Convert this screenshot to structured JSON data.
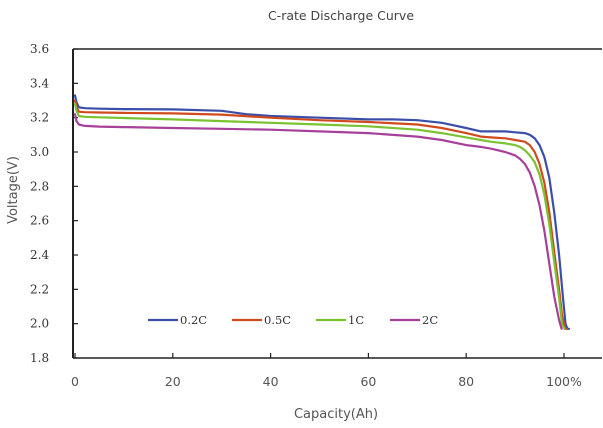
{
  "chart_data": {
    "type": "line",
    "title": "C-rate Discharge Curve",
    "xlabel": "Capacity(Ah)",
    "ylabel": "Voltage(V)",
    "xlim": [
      0,
      105
    ],
    "ylim": [
      1.8,
      3.6
    ],
    "x_ticks": [
      0,
      20,
      40,
      60,
      80,
      100
    ],
    "x_tick_labels": [
      "0",
      "20",
      "40",
      "60",
      "80",
      "100%"
    ],
    "y_ticks": [
      1.8,
      2.0,
      2.2,
      2.4,
      2.6,
      2.8,
      3.0,
      3.2,
      3.4,
      3.6
    ],
    "y_tick_labels": [
      "1.8",
      "2.0",
      "2.2",
      "2.4",
      "2.6",
      "2.8",
      "3.0",
      "3.2",
      "3.4",
      "3.6"
    ],
    "grid": false,
    "legend_position": "bottom-left-inside",
    "series": [
      {
        "name": "0.2C",
        "color": "#3b4fa8",
        "x": [
          0,
          0.3,
          0.8,
          2,
          5,
          10,
          20,
          30,
          35,
          40,
          50,
          60,
          65,
          70,
          75,
          80,
          83,
          85,
          88,
          90,
          92,
          93,
          94,
          95,
          96,
          97,
          98,
          99,
          99.8,
          100.3,
          100.7,
          101
        ],
        "y": [
          3.33,
          3.29,
          3.26,
          3.255,
          3.252,
          3.25,
          3.248,
          3.24,
          3.22,
          3.21,
          3.2,
          3.19,
          3.19,
          3.185,
          3.17,
          3.14,
          3.12,
          3.12,
          3.12,
          3.115,
          3.11,
          3.1,
          3.08,
          3.04,
          2.97,
          2.85,
          2.65,
          2.4,
          2.15,
          2.0,
          1.97,
          1.97
        ]
      },
      {
        "name": "0.5C",
        "color": "#d04a1e",
        "x": [
          0,
          0.3,
          0.8,
          2,
          5,
          10,
          20,
          30,
          40,
          50,
          60,
          70,
          75,
          80,
          83,
          85,
          88,
          90,
          92,
          93,
          94,
          95,
          96,
          97,
          98,
          99,
          99.6,
          100.2,
          100.6
        ],
        "y": [
          3.3,
          3.26,
          3.235,
          3.232,
          3.23,
          3.228,
          3.225,
          3.218,
          3.2,
          3.185,
          3.175,
          3.16,
          3.14,
          3.11,
          3.09,
          3.085,
          3.08,
          3.07,
          3.06,
          3.04,
          3.0,
          2.93,
          2.82,
          2.65,
          2.42,
          2.2,
          2.05,
          1.97,
          1.97
        ]
      },
      {
        "name": "1C",
        "color": "#7ac232",
        "x": [
          0,
          0.3,
          0.8,
          2,
          5,
          10,
          20,
          30,
          40,
          50,
          60,
          70,
          75,
          80,
          83,
          85,
          88,
          90,
          91,
          92,
          93,
          94,
          95,
          96,
          97,
          98,
          99,
          99.6,
          100.1
        ],
        "y": [
          3.28,
          3.24,
          3.21,
          3.205,
          3.202,
          3.198,
          3.19,
          3.18,
          3.17,
          3.16,
          3.15,
          3.13,
          3.11,
          3.085,
          3.07,
          3.06,
          3.05,
          3.04,
          3.03,
          3.01,
          2.98,
          2.94,
          2.87,
          2.75,
          2.58,
          2.36,
          2.15,
          2.0,
          1.97
        ]
      },
      {
        "name": "2C",
        "color": "#a6409a",
        "x": [
          0,
          0.3,
          0.8,
          2,
          5,
          10,
          20,
          30,
          40,
          50,
          60,
          70,
          75,
          80,
          83,
          85,
          88,
          90,
          91,
          92,
          93,
          94,
          95,
          96,
          97,
          98,
          99,
          99.5
        ],
        "y": [
          3.22,
          3.18,
          3.16,
          3.152,
          3.148,
          3.145,
          3.14,
          3.135,
          3.13,
          3.12,
          3.11,
          3.09,
          3.07,
          3.04,
          3.03,
          3.02,
          3.0,
          2.98,
          2.96,
          2.93,
          2.88,
          2.8,
          2.69,
          2.54,
          2.35,
          2.16,
          2.02,
          1.97
        ]
      }
    ]
  }
}
